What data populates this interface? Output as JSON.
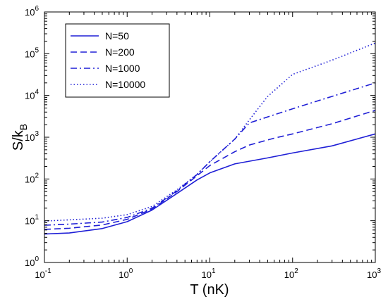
{
  "chart_data": {
    "type": "line",
    "xlabel": "T (nK)",
    "ylabel": {
      "base": "S/k",
      "sub": "B"
    },
    "xscale": "log",
    "yscale": "log",
    "xlim": [
      0.1,
      1000
    ],
    "ylim": [
      1,
      1000000
    ],
    "x_ticks": [
      {
        "value": 0.1,
        "base": "10",
        "exp": "-1"
      },
      {
        "value": 1,
        "base": "10",
        "exp": "0"
      },
      {
        "value": 10,
        "base": "10",
        "exp": "1"
      },
      {
        "value": 100,
        "base": "10",
        "exp": "2"
      },
      {
        "value": 1000,
        "base": "10",
        "exp": "3"
      }
    ],
    "y_ticks": [
      {
        "value": 1,
        "base": "10",
        "exp": "0"
      },
      {
        "value": 10,
        "base": "10",
        "exp": "1"
      },
      {
        "value": 100,
        "base": "10",
        "exp": "2"
      },
      {
        "value": 1000,
        "base": "10",
        "exp": "3"
      },
      {
        "value": 10000,
        "base": "10",
        "exp": "4"
      },
      {
        "value": 100000,
        "base": "10",
        "exp": "5"
      },
      {
        "value": 1000000,
        "base": "10",
        "exp": "6"
      }
    ],
    "grid": false,
    "legend_position": "top-left",
    "color": "#1f1fd6",
    "series": [
      {
        "name": "N=50",
        "dash": "solid",
        "points": [
          [
            0.1,
            4.8
          ],
          [
            0.2,
            5.1
          ],
          [
            0.5,
            6.5
          ],
          [
            1,
            9.5
          ],
          [
            2,
            18
          ],
          [
            4,
            45
          ],
          [
            7,
            95
          ],
          [
            10,
            140
          ],
          [
            20,
            230
          ],
          [
            50,
            320
          ],
          [
            100,
            420
          ],
          [
            300,
            620
          ],
          [
            1000,
            1200
          ]
        ]
      },
      {
        "name": "N=200",
        "dash": "dashed",
        "points": [
          [
            0.1,
            6.2
          ],
          [
            0.2,
            6.6
          ],
          [
            0.5,
            7.9
          ],
          [
            1,
            10.8
          ],
          [
            2,
            19
          ],
          [
            4,
            50
          ],
          [
            7,
            120
          ],
          [
            10,
            210
          ],
          [
            20,
            450
          ],
          [
            30,
            650
          ],
          [
            60,
            950
          ],
          [
            100,
            1200
          ],
          [
            300,
            2100
          ],
          [
            1000,
            4400
          ]
        ]
      },
      {
        "name": "N=1000",
        "dash": "dashdot",
        "points": [
          [
            0.1,
            7.8
          ],
          [
            0.2,
            8.3
          ],
          [
            0.5,
            9.3
          ],
          [
            1,
            12
          ],
          [
            2,
            20
          ],
          [
            4,
            52
          ],
          [
            7,
            128
          ],
          [
            10,
            260
          ],
          [
            20,
            900
          ],
          [
            30,
            2200
          ],
          [
            100,
            4800
          ],
          [
            300,
            9500
          ],
          [
            1000,
            20000
          ]
        ]
      },
      {
        "name": "N=10000",
        "dash": "dotted",
        "points": [
          [
            0.1,
            9.8
          ],
          [
            0.2,
            10.5
          ],
          [
            0.5,
            11.5
          ],
          [
            1,
            14
          ],
          [
            2,
            22
          ],
          [
            4,
            55
          ],
          [
            7,
            130
          ],
          [
            10,
            260
          ],
          [
            20,
            900
          ],
          [
            30,
            2600
          ],
          [
            50,
            9500
          ],
          [
            100,
            32000
          ],
          [
            300,
            70000
          ],
          [
            1000,
            180000
          ]
        ]
      }
    ]
  }
}
